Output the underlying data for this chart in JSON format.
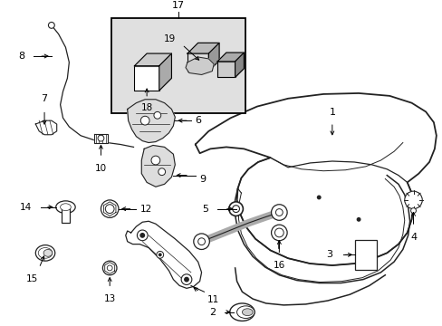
{
  "background_color": "#ffffff",
  "line_color": "#222222",
  "fig_width": 4.89,
  "fig_height": 3.6,
  "dpi": 100,
  "inset_bg": "#e0e0e0",
  "inset_border": "#000000"
}
